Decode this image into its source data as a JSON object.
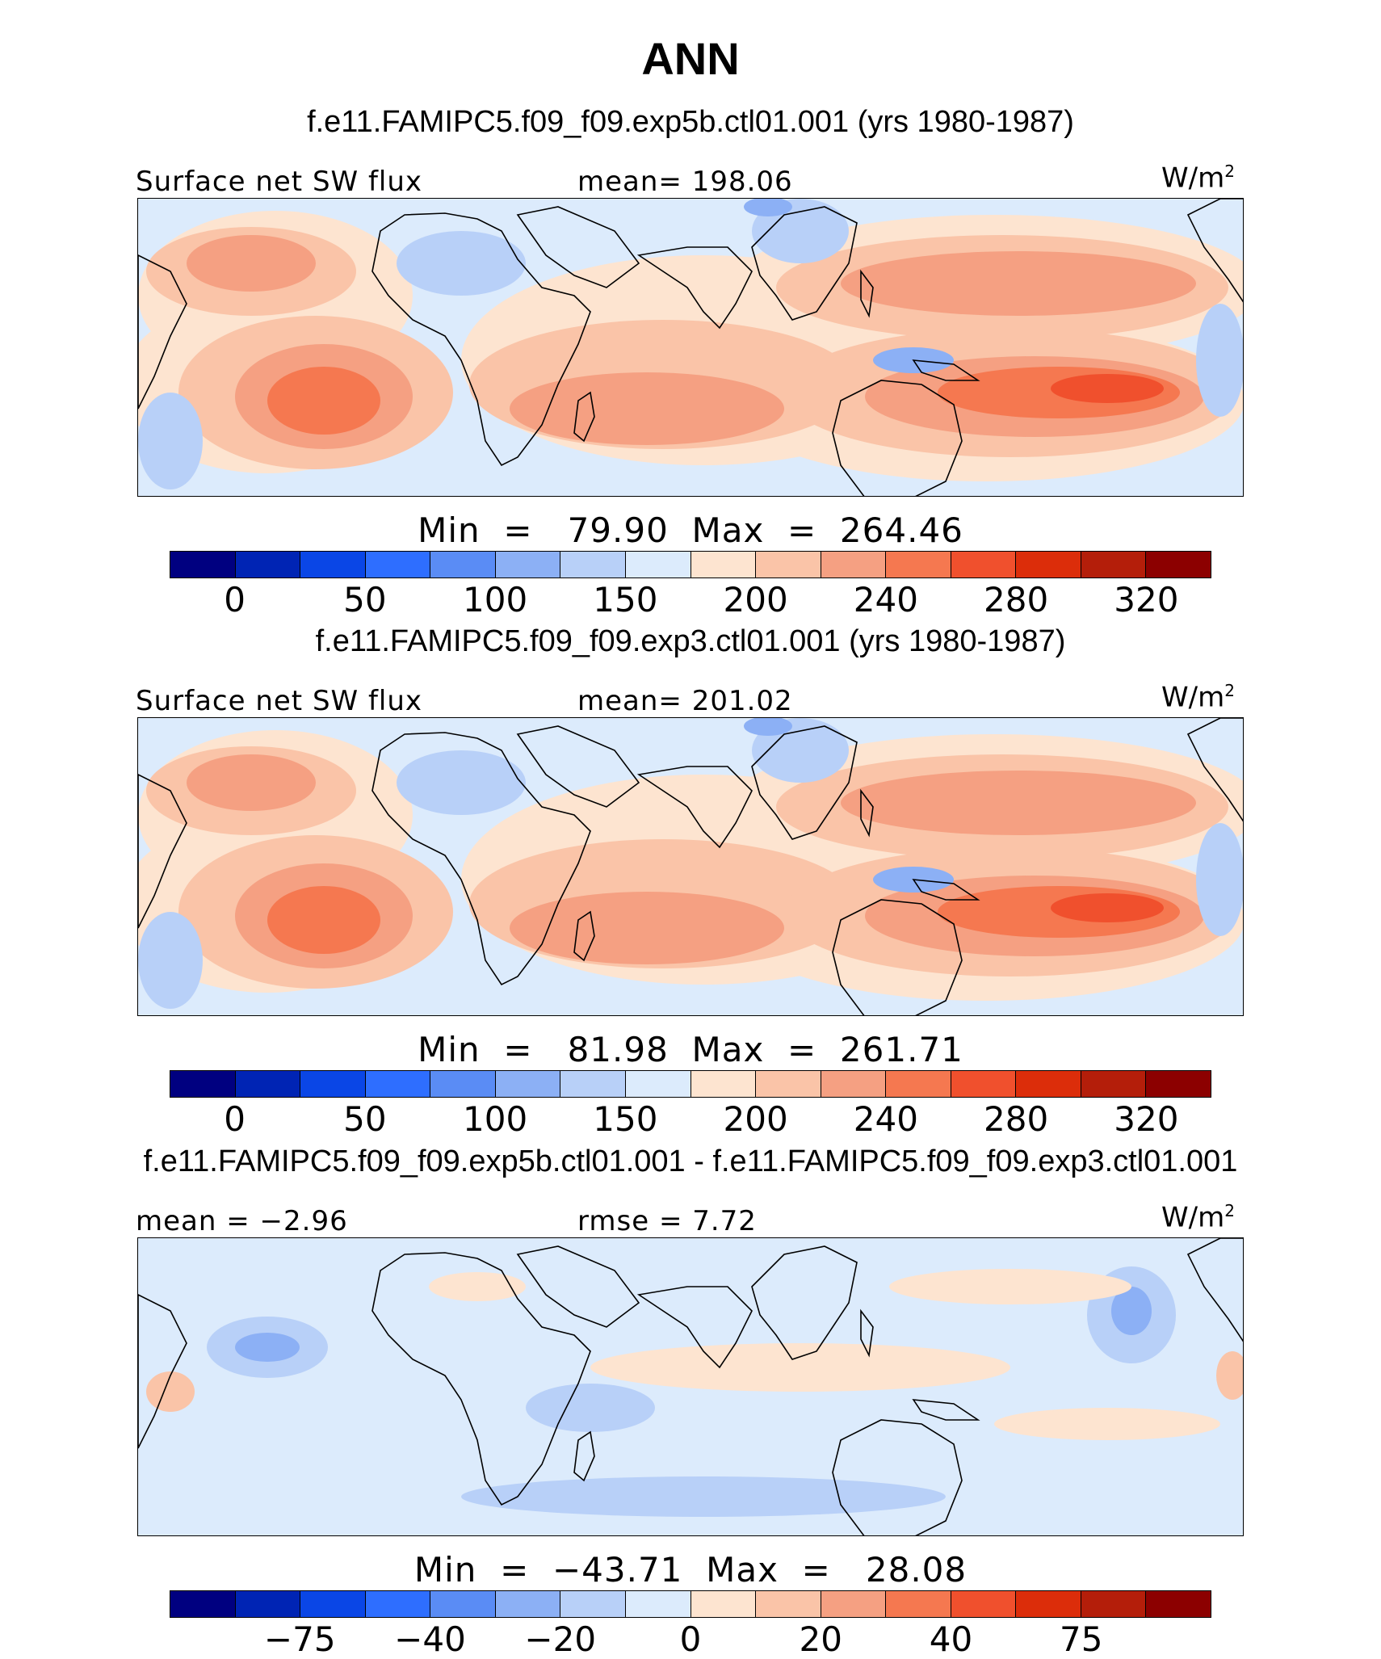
{
  "title": "ANN",
  "colors": [
    "#000080",
    "#0024b4",
    "#0a46e6",
    "#2e6eff",
    "#5a8cf5",
    "#8cb0f5",
    "#b8d0f8",
    "#dcebfc",
    "#fde4d0",
    "#fac4a8",
    "#f5a082",
    "#f57850",
    "#f0502d",
    "#dc2d0a",
    "#b41e0a",
    "#8c0000"
  ],
  "panels": [
    {
      "case_title": "f.e11.FAMIPC5.f09_f09.exp5b.ctl01.001 (yrs 1980-1987)",
      "left_label": "Surface net SW flux",
      "center_label": "mean=  198.06",
      "units": "W/m",
      "units_sup": "2",
      "minmax": "Min  =   79.90  Max  =  264.46",
      "ticks": [
        "0",
        "50",
        "100",
        "150",
        "200",
        "240",
        "280",
        "320"
      ],
      "warm_bias": 0
    },
    {
      "case_title": "f.e11.FAMIPC5.f09_f09.exp3.ctl01.001 (yrs 1980-1987)",
      "left_label": "Surface net SW flux",
      "center_label": "mean=  201.02",
      "units": "W/m",
      "units_sup": "2",
      "minmax": "Min  =   81.98  Max  =  261.71",
      "ticks": [
        "0",
        "50",
        "100",
        "150",
        "200",
        "240",
        "280",
        "320"
      ],
      "warm_bias": 0
    },
    {
      "case_title": "f.e11.FAMIPC5.f09_f09.exp5b.ctl01.001 - f.e11.FAMIPC5.f09_f09.exp3.ctl01.001",
      "left_label": "mean  =   −2.96",
      "center_label": "rmse  =    7.72",
      "units": "W/m",
      "units_sup": "2",
      "minmax": "Min  =  −43.71  Max  =   28.08",
      "ticks": [
        "−75",
        "−40",
        "−20",
        "0",
        "20",
        "40",
        "75"
      ],
      "warm_bias": 1
    }
  ],
  "chart_data": [
    {
      "type": "heatmap",
      "title": "f.e11.FAMIPC5.f09_f09.exp5b.ctl01.001 (yrs 1980-1987)",
      "variable": "Surface net SW flux",
      "units": "W/m2",
      "mean": 198.06,
      "min": 79.9,
      "max": 264.46,
      "colorbar_levels": [
        0,
        25,
        50,
        75,
        100,
        125,
        150,
        175,
        200,
        220,
        240,
        260,
        280,
        300,
        320
      ]
    },
    {
      "type": "heatmap",
      "title": "f.e11.FAMIPC5.f09_f09.exp3.ctl01.001 (yrs 1980-1987)",
      "variable": "Surface net SW flux",
      "units": "W/m2",
      "mean": 201.02,
      "min": 81.98,
      "max": 261.71,
      "colorbar_levels": [
        0,
        25,
        50,
        75,
        100,
        125,
        150,
        175,
        200,
        220,
        240,
        260,
        280,
        300,
        320
      ]
    },
    {
      "type": "heatmap",
      "title": "f.e11.FAMIPC5.f09_f09.exp5b.ctl01.001 - f.e11.FAMIPC5.f09_f09.exp3.ctl01.001",
      "units": "W/m2",
      "mean": -2.96,
      "rmse": 7.72,
      "min": -43.71,
      "max": 28.08,
      "colorbar_levels": [
        -100,
        -75,
        -50,
        -40,
        -30,
        -20,
        -10,
        0,
        10,
        20,
        30,
        40,
        50,
        75,
        100
      ]
    }
  ]
}
